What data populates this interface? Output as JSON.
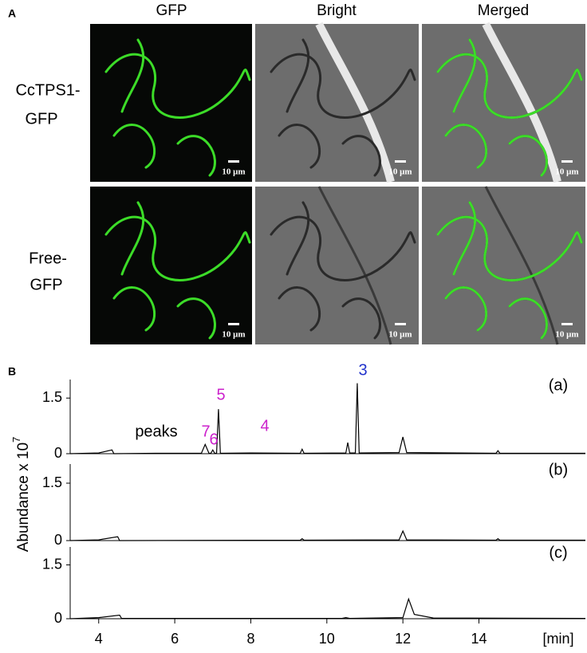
{
  "panel_a": {
    "label": "A",
    "columns": [
      "GFP",
      "Bright",
      "Merged"
    ],
    "rows": [
      {
        "label_lines": [
          "CcTPS1-",
          "GFP"
        ]
      },
      {
        "label_lines": [
          "Free-",
          "GFP"
        ]
      }
    ],
    "scale_bar": "10 μm"
  },
  "panel_b": {
    "label": "B",
    "y_axis_label": {
      "text": "Abundance x 10",
      "exponent": "7"
    }
  },
  "chart_data": [
    {
      "type": "line",
      "panel_label": "(a)",
      "annotations": [
        {
          "text": "3",
          "color": "#2233cc"
        },
        {
          "text": "5",
          "color": "#cc22cc"
        },
        {
          "text": "7",
          "color": "#cc22cc"
        },
        {
          "text": "6",
          "color": "#cc22cc"
        },
        {
          "text": "4",
          "color": "#cc22cc"
        },
        {
          "text": "peaks",
          "color": "#000000"
        }
      ],
      "x": [
        3.25,
        4.0,
        4.35,
        4.4,
        5.5,
        6.7,
        6.8,
        6.9,
        6.95,
        7.0,
        7.05,
        7.1,
        7.15,
        7.2,
        8.0,
        9.3,
        9.35,
        9.4,
        10.5,
        10.55,
        10.6,
        10.75,
        10.8,
        10.85,
        11.9,
        12.0,
        12.1,
        14.45,
        14.5,
        14.55,
        16.8
      ],
      "series": [
        {
          "color": "#000000",
          "values": [
            0,
            0.02,
            0.1,
            0,
            0.01,
            0.01,
            0.25,
            0.01,
            0.01,
            0.1,
            0.01,
            0.01,
            1.2,
            0.01,
            0.02,
            0.01,
            0.12,
            0.01,
            0.02,
            0.3,
            0.02,
            0.02,
            1.9,
            0.02,
            0.03,
            0.45,
            0.03,
            0.01,
            0.08,
            0.01,
            0.01
          ]
        }
      ],
      "xlim": [
        3.25,
        16.8
      ],
      "ylim": [
        0,
        2
      ],
      "yticks": [
        0,
        1.5
      ]
    },
    {
      "type": "line",
      "panel_label": "(b)",
      "x": [
        3.25,
        4.0,
        4.5,
        4.55,
        9.3,
        9.35,
        9.4,
        11.9,
        12.0,
        12.1,
        14.45,
        14.5,
        14.55,
        16.8
      ],
      "series": [
        {
          "color": "#000000",
          "values": [
            0,
            0.02,
            0.1,
            0,
            0.01,
            0.05,
            0.01,
            0.02,
            0.25,
            0.02,
            0.01,
            0.05,
            0.01,
            0.01
          ]
        }
      ],
      "xlim": [
        3.25,
        16.8
      ],
      "ylim": [
        0,
        2
      ],
      "yticks": [
        0,
        1.5
      ]
    },
    {
      "type": "line",
      "panel_label": "(c)",
      "xlabel": "[min]",
      "x": [
        3.25,
        4.0,
        4.55,
        4.6,
        10.4,
        10.5,
        10.6,
        12.0,
        12.15,
        12.3,
        12.8,
        16.8
      ],
      "series": [
        {
          "color": "#000000",
          "values": [
            0,
            0.03,
            0.1,
            0.01,
            0.01,
            0.03,
            0.01,
            0.03,
            0.55,
            0.12,
            0.02,
            0.01
          ]
        }
      ],
      "xlim": [
        3.25,
        16.8
      ],
      "ylim": [
        0,
        2
      ],
      "yticks": [
        0,
        1.5
      ],
      "xticks": [
        4,
        6,
        8,
        10,
        12,
        14
      ]
    }
  ]
}
